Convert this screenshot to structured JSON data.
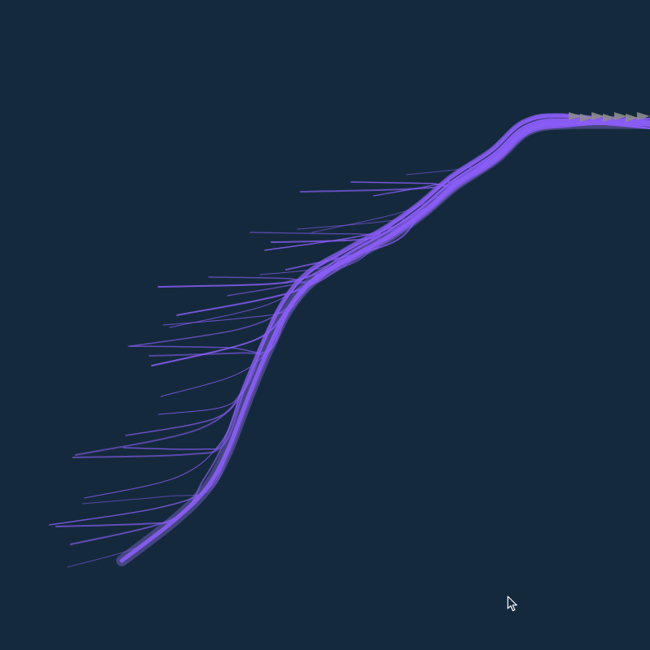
{
  "scene": {
    "background_color": "#142a3c",
    "stream_color": "#8a5cf6",
    "stream_glow_color": "#a17cff",
    "arrow_color": "#8c8c8c",
    "stream_count": 34,
    "arrowhead_count": 7,
    "cursor_icon": "mouse-pointer-icon"
  }
}
